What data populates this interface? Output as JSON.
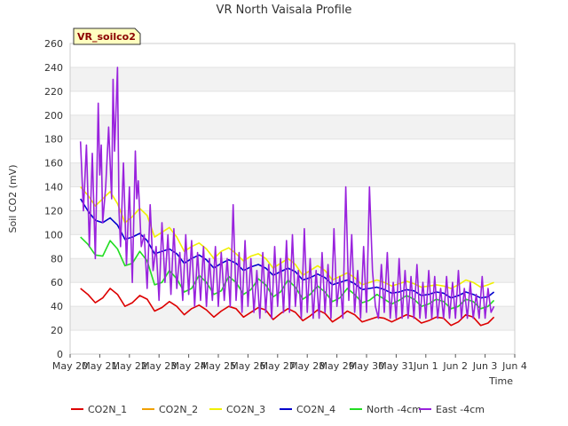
{
  "chart_data": {
    "type": "line",
    "title": "VR North Vaisala Profile",
    "xlabel": "Time",
    "ylabel": "Soil CO2 (mV)",
    "badge": "VR_soilco2",
    "ylim": [
      0,
      260
    ],
    "yticks": [
      0,
      20,
      40,
      60,
      80,
      100,
      120,
      140,
      160,
      180,
      200,
      220,
      240,
      260
    ],
    "xlim": [
      0,
      15
    ],
    "xticks": [
      {
        "x": 0,
        "label": "May 20"
      },
      {
        "x": 1,
        "label": "May 21"
      },
      {
        "x": 2,
        "label": "May 22"
      },
      {
        "x": 3,
        "label": "May 23"
      },
      {
        "x": 4,
        "label": "May 24"
      },
      {
        "x": 5,
        "label": "May 25"
      },
      {
        "x": 6,
        "label": "May 26"
      },
      {
        "x": 7,
        "label": "May 27"
      },
      {
        "x": 8,
        "label": "May 28"
      },
      {
        "x": 9,
        "label": "May 29"
      },
      {
        "x": 10,
        "label": "May 30"
      },
      {
        "x": 11,
        "label": "May 31"
      },
      {
        "x": 12,
        "label": "Jun 1"
      },
      {
        "x": 13,
        "label": "Jun 2"
      },
      {
        "x": 14,
        "label": "Jun 3"
      },
      {
        "x": 15,
        "label": "Jun 4"
      }
    ],
    "grid": "horizontal-bands",
    "legend_position": "bottom",
    "series": [
      {
        "name": "CO2N_1",
        "color": "#dd0000",
        "x": [
          0.35,
          0.6,
          0.85,
          1.1,
          1.35,
          1.6,
          1.85,
          2.1,
          2.35,
          2.6,
          2.85,
          3.1,
          3.35,
          3.6,
          3.85,
          4.1,
          4.35,
          4.6,
          4.85,
          5.1,
          5.35,
          5.6,
          5.85,
          6.1,
          6.35,
          6.6,
          6.85,
          7.1,
          7.35,
          7.6,
          7.85,
          8.1,
          8.35,
          8.6,
          8.85,
          9.1,
          9.35,
          9.6,
          9.85,
          10.1,
          10.35,
          10.6,
          10.85,
          11.1,
          11.35,
          11.6,
          11.85,
          12.1,
          12.35,
          12.6,
          12.85,
          13.1,
          13.35,
          13.6,
          13.85,
          14.1,
          14.3
        ],
        "y": [
          55,
          50,
          43,
          47,
          55,
          50,
          40,
          43,
          49,
          46,
          36,
          39,
          44,
          40,
          33,
          38,
          41,
          37,
          31,
          36,
          40,
          38,
          31,
          35,
          39,
          37,
          29,
          34,
          38,
          35,
          28,
          32,
          37,
          34,
          27,
          31,
          36,
          33,
          27,
          29,
          31,
          30,
          27,
          30,
          33,
          31,
          26,
          28,
          31,
          30,
          24,
          27,
          33,
          31,
          24,
          26,
          31
        ]
      },
      {
        "name": "CO2N_2",
        "color": "#f0a000",
        "x": [],
        "y": []
      },
      {
        "name": "CO2N_3",
        "color": "#f0f000",
        "x": [
          0.35,
          0.6,
          0.85,
          1.1,
          1.35,
          1.6,
          1.85,
          2.1,
          2.35,
          2.6,
          2.85,
          3.1,
          3.35,
          3.6,
          3.85,
          4.1,
          4.35,
          4.6,
          4.85,
          5.1,
          5.35,
          5.6,
          5.85,
          6.1,
          6.35,
          6.6,
          6.85,
          7.1,
          7.35,
          7.6,
          7.85,
          8.1,
          8.35,
          8.6,
          8.85,
          9.1,
          9.35,
          9.6,
          9.85,
          10.1,
          10.35,
          10.6,
          10.85,
          11.1,
          11.35,
          11.6,
          11.85,
          12.1,
          12.35,
          12.6,
          12.85,
          13.1,
          13.35,
          13.6,
          13.85,
          14.1,
          14.3
        ],
        "y": [
          140,
          133,
          124,
          130,
          136,
          126,
          110,
          115,
          122,
          116,
          98,
          102,
          106,
          98,
          86,
          90,
          93,
          88,
          80,
          86,
          89,
          84,
          78,
          82,
          84,
          80,
          72,
          76,
          80,
          75,
          66,
          70,
          74,
          70,
          62,
          65,
          68,
          64,
          58,
          60,
          62,
          60,
          57,
          59,
          61,
          59,
          56,
          57,
          58,
          57,
          55,
          58,
          62,
          60,
          56,
          58,
          60
        ]
      },
      {
        "name": "CO2N_4",
        "color": "#0000cc",
        "x": [
          0.35,
          0.6,
          0.85,
          1.1,
          1.35,
          1.6,
          1.85,
          2.1,
          2.35,
          2.6,
          2.85,
          3.1,
          3.35,
          3.6,
          3.85,
          4.1,
          4.35,
          4.6,
          4.85,
          5.1,
          5.35,
          5.6,
          5.85,
          6.1,
          6.35,
          6.6,
          6.85,
          7.1,
          7.35,
          7.6,
          7.85,
          8.1,
          8.35,
          8.6,
          8.85,
          9.1,
          9.35,
          9.6,
          9.85,
          10.1,
          10.35,
          10.6,
          10.85,
          11.1,
          11.35,
          11.6,
          11.85,
          12.1,
          12.35,
          12.6,
          12.85,
          13.1,
          13.35,
          13.6,
          13.85,
          14.1,
          14.3
        ],
        "y": [
          130,
          120,
          112,
          110,
          114,
          108,
          96,
          98,
          101,
          95,
          84,
          86,
          88,
          84,
          76,
          80,
          83,
          79,
          72,
          76,
          79,
          76,
          70,
          73,
          75,
          72,
          66,
          69,
          72,
          69,
          62,
          64,
          67,
          64,
          58,
          60,
          62,
          59,
          54,
          55,
          56,
          54,
          51,
          52,
          54,
          53,
          49,
          50,
          52,
          51,
          47,
          49,
          52,
          50,
          47,
          48,
          52
        ]
      },
      {
        "name": "North -4cm",
        "color": "#22dd22",
        "x": [
          0.35,
          0.6,
          0.85,
          1.1,
          1.35,
          1.6,
          1.85,
          2.1,
          2.35,
          2.6,
          2.85,
          3.1,
          3.35,
          3.6,
          3.85,
          4.1,
          4.35,
          4.6,
          4.85,
          5.1,
          5.35,
          5.6,
          5.85,
          6.1,
          6.35,
          6.6,
          6.85,
          7.1,
          7.35,
          7.6,
          7.85,
          8.1,
          8.35,
          8.6,
          8.85,
          9.1,
          9.35,
          9.6,
          9.85,
          10.1,
          10.35,
          10.6,
          10.85,
          11.1,
          11.35,
          11.6,
          11.85,
          12.1,
          12.35,
          12.6,
          12.85,
          13.1,
          13.35,
          13.6,
          13.85,
          14.1,
          14.3
        ],
        "y": [
          98,
          92,
          83,
          82,
          95,
          88,
          74,
          76,
          86,
          78,
          58,
          60,
          70,
          63,
          52,
          55,
          66,
          60,
          50,
          53,
          65,
          60,
          50,
          54,
          63,
          58,
          48,
          52,
          62,
          56,
          46,
          50,
          57,
          52,
          44,
          47,
          55,
          50,
          43,
          45,
          50,
          46,
          42,
          45,
          49,
          46,
          40,
          42,
          46,
          44,
          38,
          40,
          46,
          44,
          38,
          40,
          45
        ]
      },
      {
        "name": "East -4cm",
        "color": "#9922dd",
        "x": [
          0.35,
          0.45,
          0.55,
          0.65,
          0.75,
          0.85,
          0.95,
          1.0,
          1.05,
          1.1,
          1.2,
          1.3,
          1.4,
          1.45,
          1.5,
          1.6,
          1.65,
          1.7,
          1.8,
          1.9,
          2.0,
          2.1,
          2.2,
          2.25,
          2.3,
          2.4,
          2.5,
          2.6,
          2.7,
          2.8,
          2.9,
          3.0,
          3.1,
          3.2,
          3.3,
          3.4,
          3.5,
          3.6,
          3.7,
          3.8,
          3.9,
          4.0,
          4.1,
          4.2,
          4.3,
          4.4,
          4.5,
          4.6,
          4.7,
          4.8,
          4.9,
          5.0,
          5.1,
          5.2,
          5.3,
          5.4,
          5.5,
          5.6,
          5.7,
          5.8,
          5.9,
          6.0,
          6.1,
          6.2,
          6.3,
          6.4,
          6.5,
          6.6,
          6.7,
          6.8,
          6.9,
          7.0,
          7.1,
          7.2,
          7.3,
          7.4,
          7.5,
          7.6,
          7.7,
          7.8,
          7.9,
          8.0,
          8.1,
          8.2,
          8.3,
          8.4,
          8.5,
          8.6,
          8.7,
          8.8,
          8.9,
          9.0,
          9.1,
          9.2,
          9.3,
          9.4,
          9.5,
          9.6,
          9.7,
          9.8,
          9.9,
          10.0,
          10.1,
          10.2,
          10.3,
          10.4,
          10.5,
          10.6,
          10.7,
          10.8,
          10.9,
          11.0,
          11.1,
          11.2,
          11.3,
          11.4,
          11.5,
          11.6,
          11.7,
          11.8,
          11.9,
          12.0,
          12.1,
          12.2,
          12.3,
          12.4,
          12.5,
          12.6,
          12.7,
          12.8,
          12.9,
          13.0,
          13.1,
          13.2,
          13.3,
          13.4,
          13.5,
          13.6,
          13.7,
          13.8,
          13.9,
          14.0,
          14.1,
          14.2,
          14.3
        ],
        "y": [
          178,
          120,
          175,
          90,
          168,
          80,
          210,
          150,
          175,
          110,
          140,
          190,
          130,
          230,
          170,
          240,
          120,
          90,
          160,
          75,
          140,
          60,
          170,
          130,
          145,
          90,
          100,
          55,
          125,
          70,
          90,
          45,
          110,
          60,
          100,
          50,
          105,
          55,
          85,
          45,
          100,
          50,
          95,
          40,
          85,
          45,
          90,
          40,
          80,
          45,
          90,
          40,
          85,
          45,
          80,
          40,
          125,
          45,
          85,
          35,
          95,
          40,
          80,
          35,
          70,
          30,
          85,
          35,
          75,
          30,
          90,
          40,
          80,
          35,
          95,
          35,
          100,
          40,
          70,
          30,
          105,
          35,
          80,
          30,
          70,
          30,
          85,
          35,
          75,
          30,
          105,
          40,
          65,
          30,
          140,
          45,
          100,
          35,
          70,
          30,
          90,
          35,
          140,
          70,
          40,
          30,
          75,
          35,
          85,
          30,
          60,
          30,
          80,
          30,
          70,
          30,
          65,
          30,
          75,
          30,
          60,
          30,
          70,
          30,
          65,
          30,
          55,
          30,
          65,
          30,
          60,
          30,
          70,
          30,
          55,
          30,
          60,
          30,
          50,
          30,
          65,
          30,
          55,
          35,
          40
        ]
      }
    ]
  }
}
